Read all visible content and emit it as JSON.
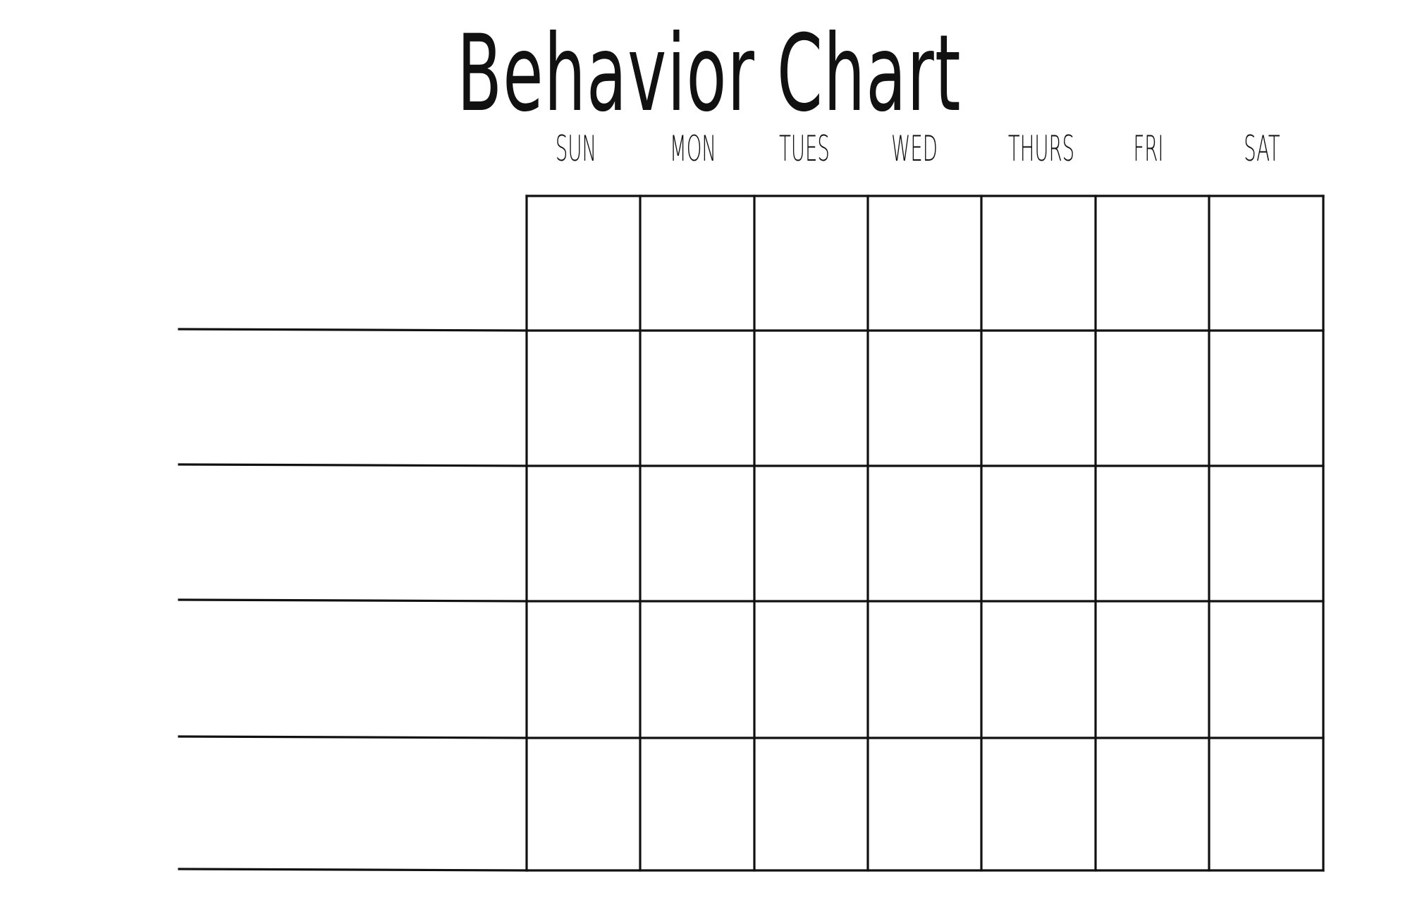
{
  "title": "Behavior Chart",
  "days": [
    "SUN",
    "MON",
    "TUES",
    "WED",
    "THURS",
    "FRI",
    "SAT"
  ],
  "behavior_rows": 5,
  "colors": {
    "ink": "#111111",
    "background": "#ffffff"
  }
}
